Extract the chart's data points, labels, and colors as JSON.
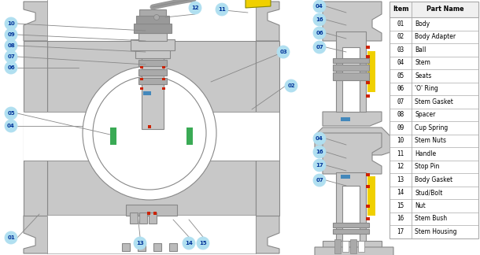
{
  "table_items": [
    [
      "01",
      "Body"
    ],
    [
      "02",
      "Body Adapter"
    ],
    [
      "03",
      "Ball"
    ],
    [
      "04",
      "Stem"
    ],
    [
      "05",
      "Seats"
    ],
    [
      "06",
      "'O' Ring"
    ],
    [
      "07",
      "Stem Gasket"
    ],
    [
      "08",
      "Spacer"
    ],
    [
      "09",
      "Cup Spring"
    ],
    [
      "10",
      "Stem Nuts"
    ],
    [
      "11",
      "Handle"
    ],
    [
      "12",
      "Stop Pin"
    ],
    [
      "13",
      "Body Gasket"
    ],
    [
      "14",
      "Stud/Bolt"
    ],
    [
      "15",
      "Nut"
    ],
    [
      "16",
      "Stem Bush"
    ],
    [
      "17",
      "Stem Housing"
    ]
  ],
  "bubble_color": "#b0dff0",
  "bubble_edge_color": "#70b8d8",
  "bubble_text_color": "#003399",
  "body_color": "#c8c8c8",
  "body_dark": "#aaaaaa",
  "body_light": "#dedede",
  "body_edge": "#888888",
  "yellow": "#f0d000",
  "green": "#3aaa55",
  "red": "#cc2200",
  "blue": "#4488bb",
  "white": "#ffffff",
  "line_color": "#888888",
  "table_line": "#aaaaaa"
}
